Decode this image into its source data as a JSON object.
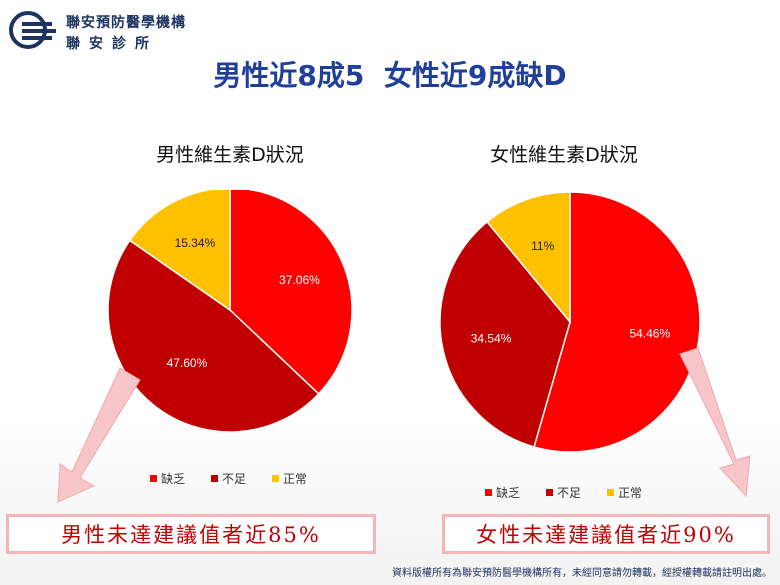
{
  "header": {
    "org_name": "聯安預防醫學機構",
    "org_sub": "聯安診所",
    "title": "男性近8成5  女性近9成缺D"
  },
  "colors": {
    "lacking": "#ff0000",
    "insufficient": "#c00000",
    "normal": "#ffc000"
  },
  "chart_data": [
    {
      "type": "pie",
      "title": "男性維生素D狀況",
      "categories": [
        "缺乏",
        "不足",
        "正常"
      ],
      "values": [
        37.06,
        47.6,
        15.34
      ],
      "labels": [
        "37.06%",
        "47.60%",
        "15.34%"
      ],
      "legend_position": "bottom"
    },
    {
      "type": "pie",
      "title": "女性維生素D狀況",
      "categories": [
        "缺乏",
        "不足",
        "正常"
      ],
      "values": [
        54.46,
        34.54,
        11
      ],
      "labels": [
        "54.46%",
        "34.54%",
        "11%"
      ],
      "legend_position": "bottom"
    }
  ],
  "callouts": {
    "male": "男性未達建議值者近85%",
    "female": "女性未達建議值者近90%"
  },
  "footer": "資料版權所有為聯安預防醫學機構所有，未經同意請勿轉載，經授權轉載請註明出處。"
}
